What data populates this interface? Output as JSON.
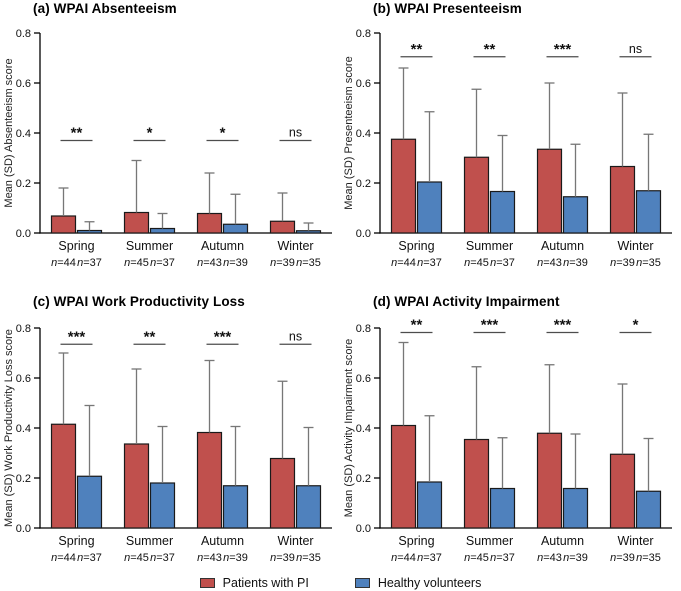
{
  "legend": {
    "position": "bottom",
    "items": [
      {
        "label": "Patients with PI",
        "color": "#c0504d"
      },
      {
        "label": "Healthy volunteers",
        "color": "#4f81bd"
      }
    ]
  },
  "colors": {
    "patients_bar": "#c0504d",
    "healthy_bar": "#4f81bd",
    "bar_outline": "#1a1a1a",
    "error_bar": "#777777",
    "sig_line": "#4d4d4d",
    "axis": "#000000"
  },
  "chart_data": [
    {
      "type": "bar",
      "panel": "a",
      "title": "(a) WPAI Absenteeism",
      "ylabel": "Mean (SD) Absenteeism score",
      "ylim": [
        0,
        0.8
      ],
      "yticks": [
        0,
        0.2,
        0.4,
        0.6,
        0.8
      ],
      "grid": false,
      "categories": [
        "Spring",
        "Summer",
        "Autumn",
        "Winter"
      ],
      "n_labels": [
        [
          "n=44",
          "n=37"
        ],
        [
          "n=45",
          "n=37"
        ],
        [
          "n=43",
          "n=39"
        ],
        [
          "n=39",
          "n=35"
        ]
      ],
      "series": [
        {
          "name": "Patients with PI",
          "color": "#c0504d",
          "values": [
            0.068,
            0.082,
            0.078,
            0.047
          ],
          "sd_top": [
            0.18,
            0.29,
            0.24,
            0.16
          ]
        },
        {
          "name": "Healthy volunteers",
          "color": "#4f81bd",
          "values": [
            0.01,
            0.018,
            0.035,
            0.009
          ],
          "sd_top": [
            0.045,
            0.078,
            0.155,
            0.04
          ]
        }
      ],
      "significance": [
        "**",
        "*",
        "*",
        "ns"
      ],
      "sig_line_y": 0.37
    },
    {
      "type": "bar",
      "panel": "b",
      "title": "(b) WPAI Presenteeism",
      "ylabel": "Mean (SD) Presenteeism score",
      "ylim": [
        0,
        0.8
      ],
      "yticks": [
        0,
        0.2,
        0.4,
        0.6,
        0.8
      ],
      "grid": false,
      "categories": [
        "Spring",
        "Summer",
        "Autumn",
        "Winter"
      ],
      "n_labels": [
        [
          "n=44",
          "n=37"
        ],
        [
          "n=45",
          "n=37"
        ],
        [
          "n=43",
          "n=39"
        ],
        [
          "n=39",
          "n=35"
        ]
      ],
      "series": [
        {
          "name": "Patients with PI",
          "color": "#c0504d",
          "values": [
            0.375,
            0.303,
            0.335,
            0.266
          ],
          "sd_top": [
            0.66,
            0.575,
            0.6,
            0.56
          ]
        },
        {
          "name": "Healthy volunteers",
          "color": "#4f81bd",
          "values": [
            0.204,
            0.166,
            0.145,
            0.169
          ],
          "sd_top": [
            0.485,
            0.39,
            0.355,
            0.395
          ]
        }
      ],
      "significance": [
        "**",
        "**",
        "***",
        "ns"
      ],
      "sig_line_y": 0.705
    },
    {
      "type": "bar",
      "panel": "c",
      "title": "(c) WPAI Work Productivity Loss",
      "ylabel": "Mean (SD) Work Productivity Loss score",
      "ylim": [
        0,
        0.8
      ],
      "yticks": [
        0,
        0.2,
        0.4,
        0.6,
        0.8
      ],
      "grid": false,
      "categories": [
        "Spring",
        "Summer",
        "Autumn",
        "Winter"
      ],
      "n_labels": [
        [
          "n=44",
          "n=37"
        ],
        [
          "n=45",
          "n=37"
        ],
        [
          "n=43",
          "n=39"
        ],
        [
          "n=39",
          "n=35"
        ]
      ],
      "series": [
        {
          "name": "Patients with PI",
          "color": "#c0504d",
          "values": [
            0.415,
            0.336,
            0.382,
            0.278
          ],
          "sd_top": [
            0.7,
            0.636,
            0.67,
            0.587
          ]
        },
        {
          "name": "Healthy volunteers",
          "color": "#4f81bd",
          "values": [
            0.207,
            0.18,
            0.169,
            0.169
          ],
          "sd_top": [
            0.49,
            0.406,
            0.406,
            0.402
          ]
        }
      ],
      "significance": [
        "***",
        "**",
        "***",
        "ns"
      ],
      "sig_line_y": 0.735
    },
    {
      "type": "bar",
      "panel": "d",
      "title": "(d) WPAI Activity Impairment",
      "ylabel": "Mean (SD) Activity Impairment score",
      "ylim": [
        0,
        0.8
      ],
      "yticks": [
        0,
        0.2,
        0.4,
        0.6,
        0.8
      ],
      "grid": false,
      "categories": [
        "Spring",
        "Summer",
        "Autumn",
        "Winter"
      ],
      "n_labels": [
        [
          "n=44",
          "n=37"
        ],
        [
          "n=45",
          "n=37"
        ],
        [
          "n=43",
          "n=39"
        ],
        [
          "n=39",
          "n=35"
        ]
      ],
      "series": [
        {
          "name": "Patients with PI",
          "color": "#c0504d",
          "values": [
            0.41,
            0.354,
            0.379,
            0.295
          ],
          "sd_top": [
            0.742,
            0.645,
            0.653,
            0.576
          ]
        },
        {
          "name": "Healthy volunteers",
          "color": "#4f81bd",
          "values": [
            0.184,
            0.158,
            0.158,
            0.147
          ],
          "sd_top": [
            0.449,
            0.361,
            0.376,
            0.358
          ]
        }
      ],
      "significance": [
        "**",
        "***",
        "***",
        "*"
      ],
      "sig_line_y": 0.782
    }
  ]
}
